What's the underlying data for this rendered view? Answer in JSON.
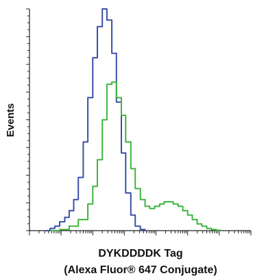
{
  "chart_data": {
    "type": "line",
    "title": "",
    "xlabel_line1": "DYKDDDDK Tag",
    "xlabel_line2": "(Alexa Fluor® 647 Conjugate)",
    "ylabel": "Events",
    "xscale": "log",
    "xlim": [
      1,
      10000000
    ],
    "ylim": [
      0,
      100
    ],
    "grid": false,
    "legend": "none",
    "series": [
      {
        "color": "#3a4fa8",
        "x": [
          3.2,
          4.5,
          6.3,
          9,
          13,
          18,
          25,
          35,
          50,
          70,
          100,
          140,
          200,
          280,
          400,
          560,
          800,
          1100,
          1600,
          2200,
          3200,
          4500
        ],
        "y": [
          0,
          1,
          2,
          4,
          6,
          9,
          14,
          24,
          40,
          60,
          78,
          92,
          100,
          95,
          80,
          58,
          35,
          17,
          7,
          2,
          0.5,
          0
        ]
      },
      {
        "color": "#3db43d",
        "x": [
          4.5,
          9,
          18,
          35,
          70,
          100,
          140,
          200,
          280,
          400,
          560,
          800,
          1100,
          1600,
          2200,
          3200,
          4500,
          6300,
          9000,
          13000,
          18000,
          25000,
          35000,
          50000,
          70000,
          100000,
          140000,
          200000,
          280000,
          400000,
          560000,
          800000,
          1100000
        ],
        "y": [
          0,
          0.5,
          2,
          5,
          12,
          20,
          32,
          50,
          66,
          67,
          60,
          52,
          40,
          28,
          19,
          14,
          11,
          10,
          11,
          12,
          13,
          13,
          12,
          11,
          9,
          7,
          5,
          3,
          2,
          1,
          0.5,
          0.2,
          0
        ]
      }
    ]
  }
}
